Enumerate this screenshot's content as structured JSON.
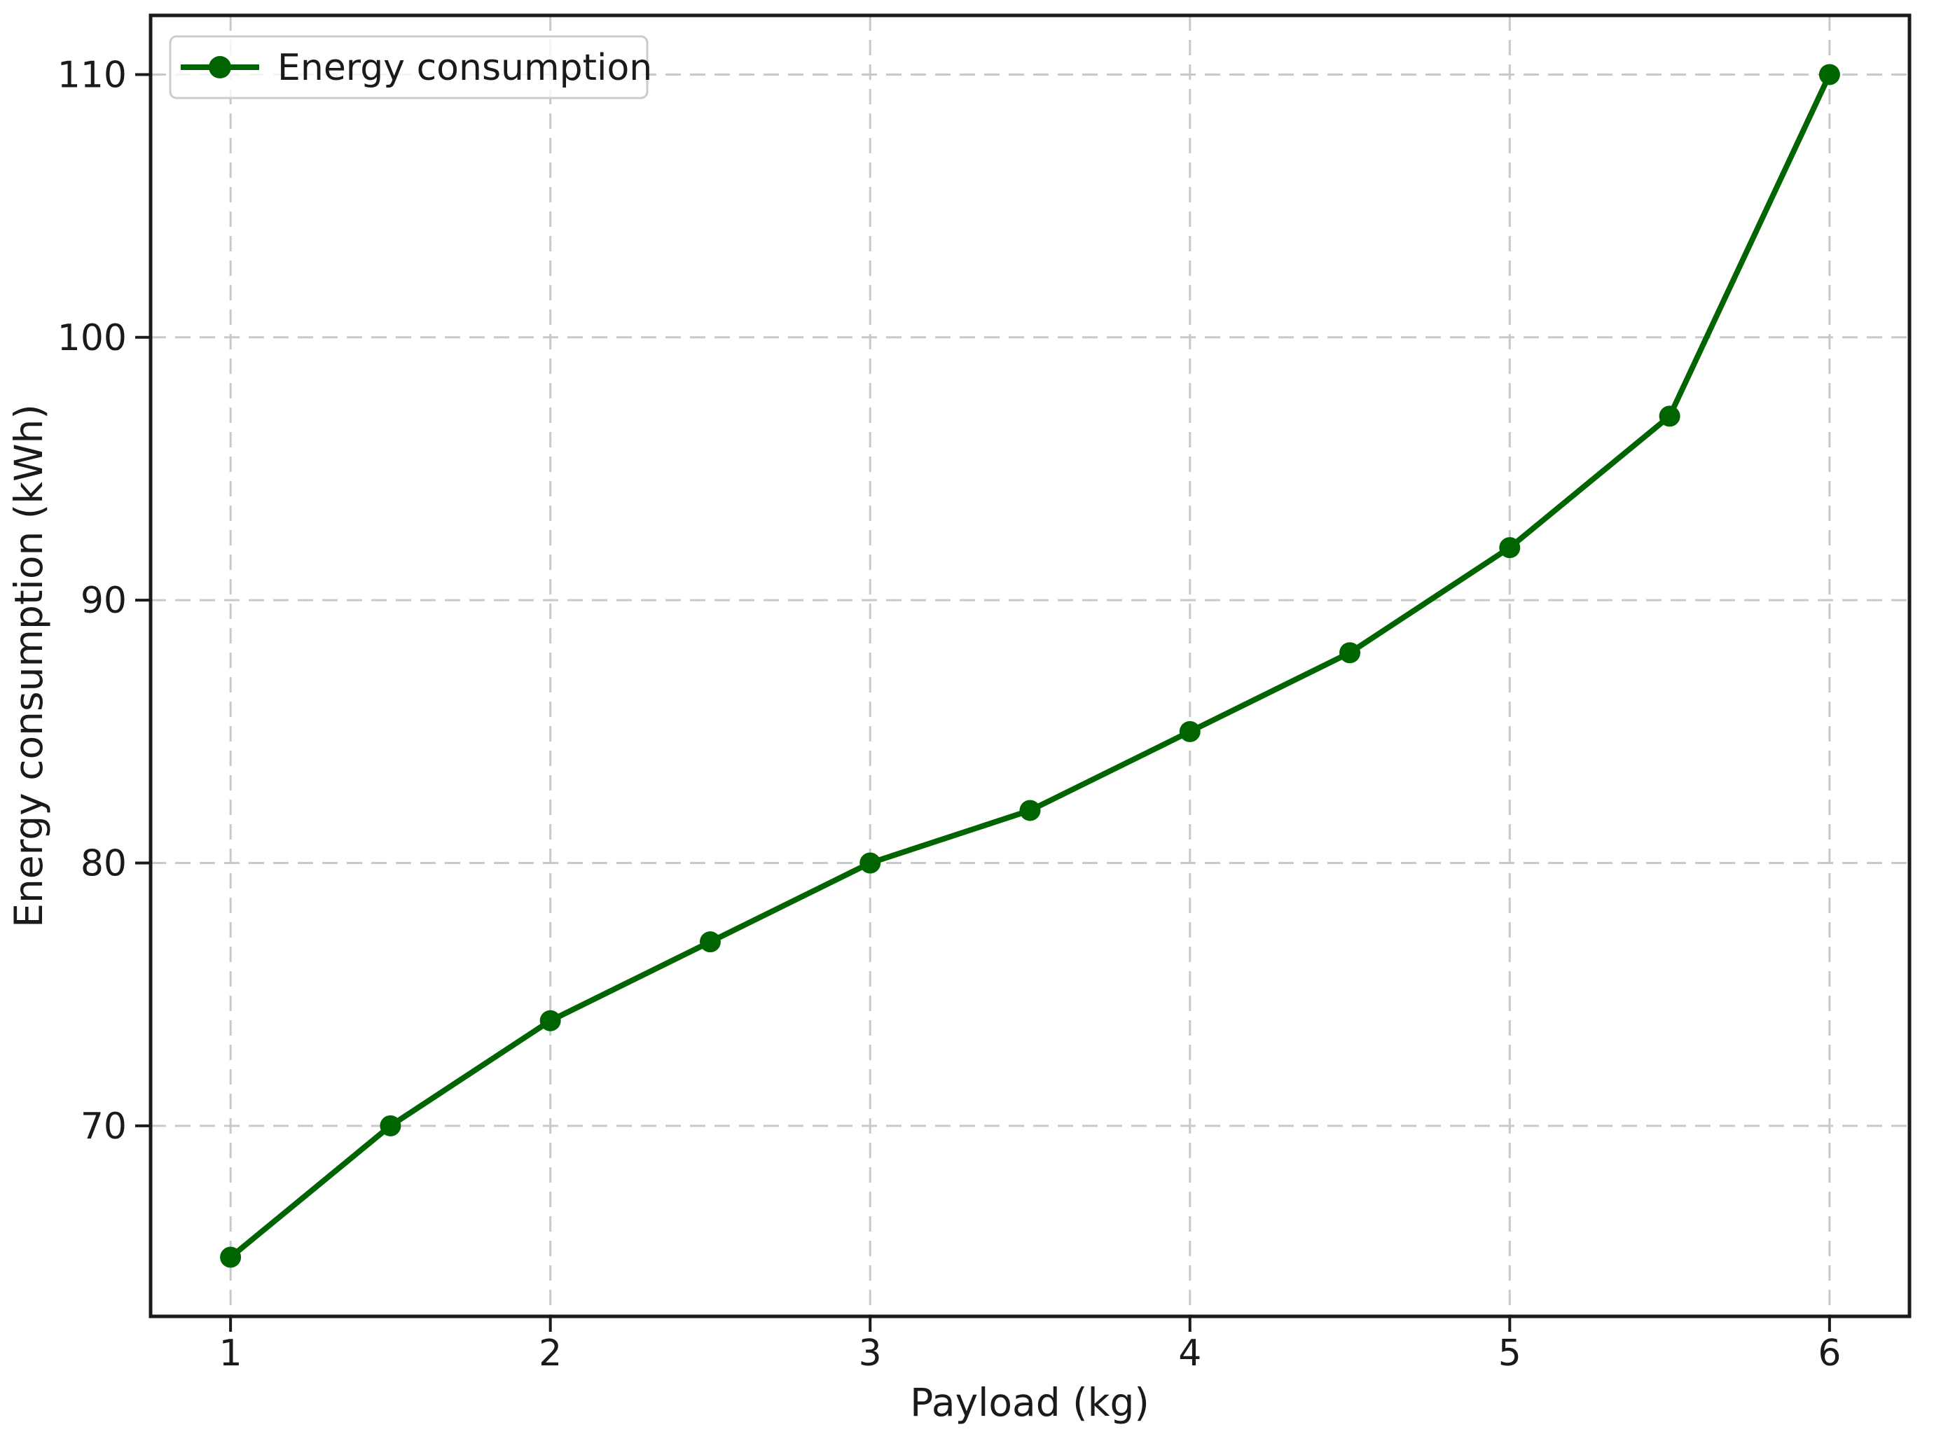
{
  "chart_data": {
    "type": "line",
    "title": "",
    "xlabel": "Payload (kg)",
    "ylabel": "Energy consumption (kWh)",
    "xlim": [
      0.75,
      6.25
    ],
    "ylim": [
      62.75,
      112.25
    ],
    "xticks": [
      1,
      2,
      3,
      4,
      5,
      6
    ],
    "yticks": [
      70,
      80,
      90,
      100,
      110
    ],
    "grid": "dashed",
    "legend": {
      "position": "upper left",
      "label": "Energy consumption"
    },
    "series": [
      {
        "name": "Energy consumption",
        "x": [
          1,
          1.5,
          2,
          2.5,
          3,
          3.5,
          4,
          4.5,
          5,
          5.5,
          6
        ],
        "y": [
          65,
          70,
          74,
          77,
          80,
          82,
          85,
          88,
          92,
          97,
          110
        ],
        "color": "#006400",
        "marker": "circle",
        "linestyle": "solid"
      }
    ]
  },
  "colors": {
    "line": "#006400",
    "grid": "#c9c9c9",
    "spine": "#1a1a1a",
    "text": "#1a1a1a",
    "legend_border": "#cccccc",
    "background": "#ffffff"
  }
}
